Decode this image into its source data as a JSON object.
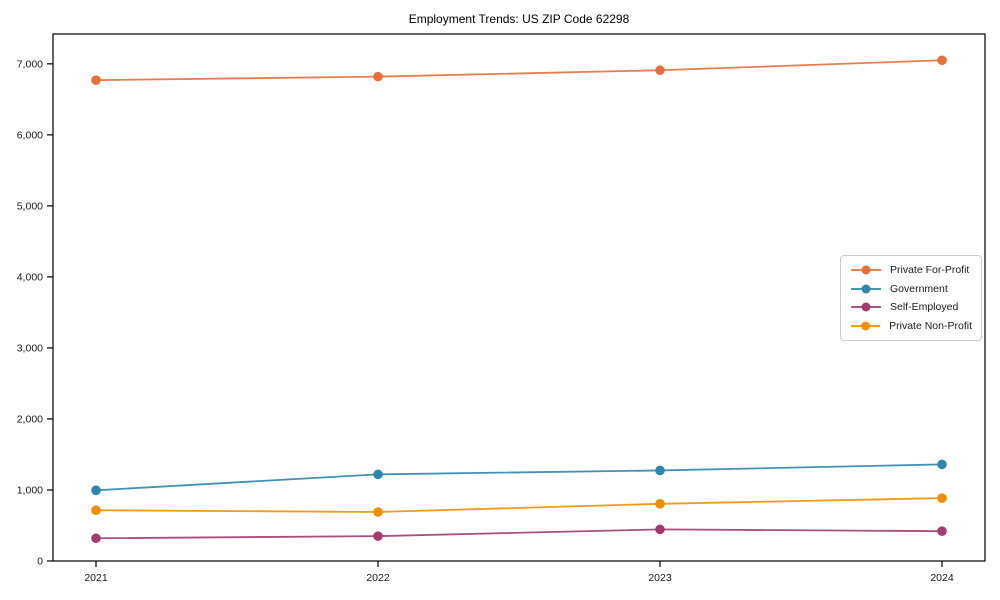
{
  "chart_data": {
    "type": "line",
    "title": "Employment Trends: US ZIP Code 62298",
    "categories": [
      "2021",
      "2022",
      "2023",
      "2024"
    ],
    "series": [
      {
        "name": "Private For-Profit",
        "color": "#E76F3C",
        "values": [
          6770,
          6820,
          6910,
          7050
        ]
      },
      {
        "name": "Government",
        "color": "#2E86AB",
        "values": [
          995,
          1220,
          1275,
          1360
        ]
      },
      {
        "name": "Self-Employed",
        "color": "#A23B72",
        "values": [
          320,
          350,
          445,
          420
        ]
      },
      {
        "name": "Private Non-Profit",
        "color": "#F18F01",
        "values": [
          715,
          690,
          805,
          885
        ]
      }
    ],
    "xlabel": "",
    "ylabel": "",
    "ylim": [
      0,
      7420
    ],
    "yticks": {
      "values": [
        0,
        1000,
        2000,
        3000,
        4000,
        5000,
        6000,
        7000
      ],
      "labels": [
        "0",
        "1,000",
        "2,000",
        "3,000",
        "4,000",
        "5,000",
        "6,000",
        "7,000"
      ]
    },
    "grid": false,
    "legend_position": "center-right",
    "marker": "circle",
    "axis_color": "#000000",
    "text_color": "#1a1a1a"
  }
}
